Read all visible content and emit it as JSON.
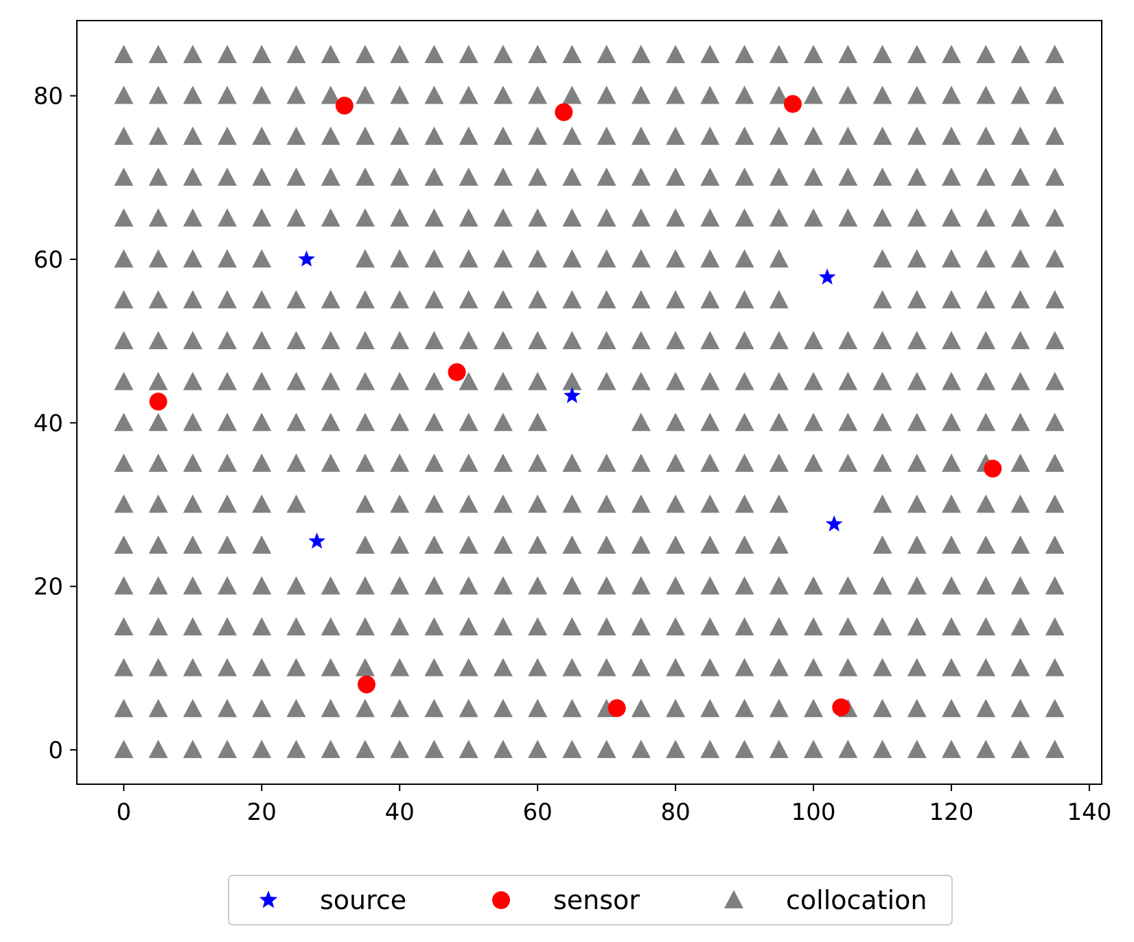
{
  "chart_data": {
    "type": "scatter",
    "title": "",
    "xlabel": "",
    "ylabel": "",
    "xlim": [
      -6.8,
      141.8
    ],
    "ylim": [
      -4.2,
      89.2
    ],
    "xticks": [
      0,
      20,
      40,
      60,
      80,
      100,
      120,
      140
    ],
    "yticks": [
      0,
      20,
      40,
      60,
      80
    ],
    "grid": false,
    "legend": {
      "placement": "bottom-center",
      "entries": [
        "source",
        "sensor",
        "collocation"
      ]
    },
    "colors": {
      "source": "#0000ff",
      "sensor": "#ff0000",
      "collocation": "#808080"
    },
    "series": [
      {
        "name": "source",
        "marker": "star",
        "points": [
          [
            26.5,
            60.0
          ],
          [
            28.0,
            25.5
          ],
          [
            65.0,
            43.3
          ],
          [
            102.0,
            57.8
          ],
          [
            103.0,
            27.6
          ]
        ]
      },
      {
        "name": "sensor",
        "marker": "circle",
        "points": [
          [
            32.0,
            78.8
          ],
          [
            63.8,
            78.0
          ],
          [
            97.0,
            79.0
          ],
          [
            5.0,
            42.6
          ],
          [
            48.3,
            46.2
          ],
          [
            126.0,
            34.4
          ],
          [
            35.2,
            8.0
          ],
          [
            71.5,
            5.1
          ],
          [
            104.0,
            5.2
          ]
        ]
      },
      {
        "name": "collocation",
        "marker": "triangle",
        "grid": {
          "x_start": 0,
          "x_end": 135,
          "x_step": 5,
          "y_start": 0,
          "y_end": 85,
          "y_step": 5
        },
        "excluded_points": [
          [
            25,
            60
          ],
          [
            30,
            60
          ],
          [
            100,
            60
          ],
          [
            105,
            60
          ],
          [
            100,
            55
          ],
          [
            105,
            55
          ],
          [
            65,
            40
          ],
          [
            70,
            40
          ],
          [
            30,
            30
          ],
          [
            100,
            30
          ],
          [
            105,
            30
          ],
          [
            25,
            25
          ],
          [
            30,
            25
          ],
          [
            100,
            25
          ],
          [
            105,
            25
          ]
        ]
      }
    ]
  }
}
